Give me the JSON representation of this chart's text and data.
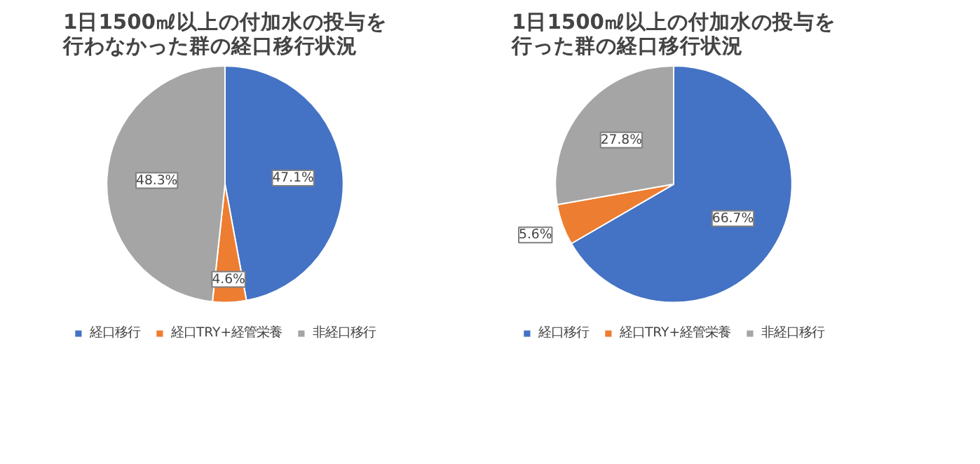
{
  "chart_data": [
    {
      "type": "pie",
      "title": "1日1500㎖以上の付加水の投与を行わなかった群の経口移行状況",
      "categories": [
        "経口移行",
        "経口TRY+経管栄養",
        "非経口移行"
      ],
      "values": [
        47.1,
        4.6,
        48.3
      ],
      "colors": [
        "#4472c4",
        "#ed7d31",
        "#a5a5a5"
      ],
      "value_labels": [
        "47.1%",
        "4.6%",
        "48.3%"
      ],
      "legend": "bottom"
    },
    {
      "type": "pie",
      "title": "1日1500㎖以上の付加水の投与を行った群の経口移行状況",
      "categories": [
        "経口移行",
        "経口TRY+経管栄養",
        "非経口移行"
      ],
      "values": [
        66.7,
        5.6,
        27.8
      ],
      "colors": [
        "#4472c4",
        "#ed7d31",
        "#a5a5a5"
      ],
      "value_labels": [
        "66.7%",
        "5.6%",
        "27.8%"
      ],
      "legend": "bottom"
    }
  ]
}
